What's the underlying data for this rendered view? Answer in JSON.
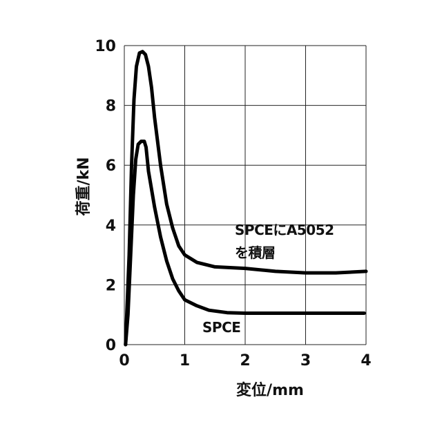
{
  "chart_data": {
    "type": "line",
    "xlabel": "変位/mm",
    "ylabel": "荷重/kN",
    "xlim": [
      0,
      4
    ],
    "ylim": [
      0,
      10
    ],
    "xticks": [
      "0",
      "1",
      "2",
      "3",
      "4"
    ],
    "yticks": [
      "0",
      "2",
      "4",
      "6",
      "8",
      "10"
    ],
    "grid": true,
    "colors": {
      "lines": "#000000",
      "grid": "#222222"
    },
    "series": [
      {
        "name": "SPCE",
        "points": [
          [
            0.02,
            0
          ],
          [
            0.06,
            1.0
          ],
          [
            0.11,
            3.2
          ],
          [
            0.15,
            5.0
          ],
          [
            0.19,
            6.2
          ],
          [
            0.23,
            6.7
          ],
          [
            0.28,
            6.8
          ],
          [
            0.33,
            6.8
          ],
          [
            0.36,
            6.6
          ],
          [
            0.4,
            5.8
          ],
          [
            0.5,
            4.6
          ],
          [
            0.6,
            3.6
          ],
          [
            0.7,
            2.8
          ],
          [
            0.8,
            2.2
          ],
          [
            0.9,
            1.8
          ],
          [
            1.0,
            1.5
          ],
          [
            1.2,
            1.3
          ],
          [
            1.4,
            1.15
          ],
          [
            1.7,
            1.07
          ],
          [
            2.0,
            1.05
          ],
          [
            2.5,
            1.05
          ],
          [
            3.0,
            1.05
          ],
          [
            3.5,
            1.05
          ],
          [
            3.97,
            1.05
          ]
        ]
      },
      {
        "name": "SPCEにA5052 を積層",
        "points": [
          [
            0.02,
            0
          ],
          [
            0.08,
            3.0
          ],
          [
            0.12,
            6.0
          ],
          [
            0.16,
            8.2
          ],
          [
            0.2,
            9.3
          ],
          [
            0.25,
            9.75
          ],
          [
            0.3,
            9.8
          ],
          [
            0.35,
            9.7
          ],
          [
            0.4,
            9.3
          ],
          [
            0.45,
            8.6
          ],
          [
            0.5,
            7.6
          ],
          [
            0.6,
            6.0
          ],
          [
            0.7,
            4.7
          ],
          [
            0.8,
            3.9
          ],
          [
            0.9,
            3.3
          ],
          [
            1.0,
            3.0
          ],
          [
            1.2,
            2.75
          ],
          [
            1.5,
            2.6
          ],
          [
            2.0,
            2.55
          ],
          [
            2.5,
            2.45
          ],
          [
            3.0,
            2.4
          ],
          [
            3.5,
            2.4
          ],
          [
            4.0,
            2.45
          ]
        ]
      }
    ],
    "annotations": [
      {
        "text_lines": [
          "SPCEにA5052",
          "を積層"
        ],
        "series": "SPCEにA5052 を積層"
      },
      {
        "text_lines": [
          "SPCE"
        ],
        "series": "SPCE"
      }
    ]
  }
}
